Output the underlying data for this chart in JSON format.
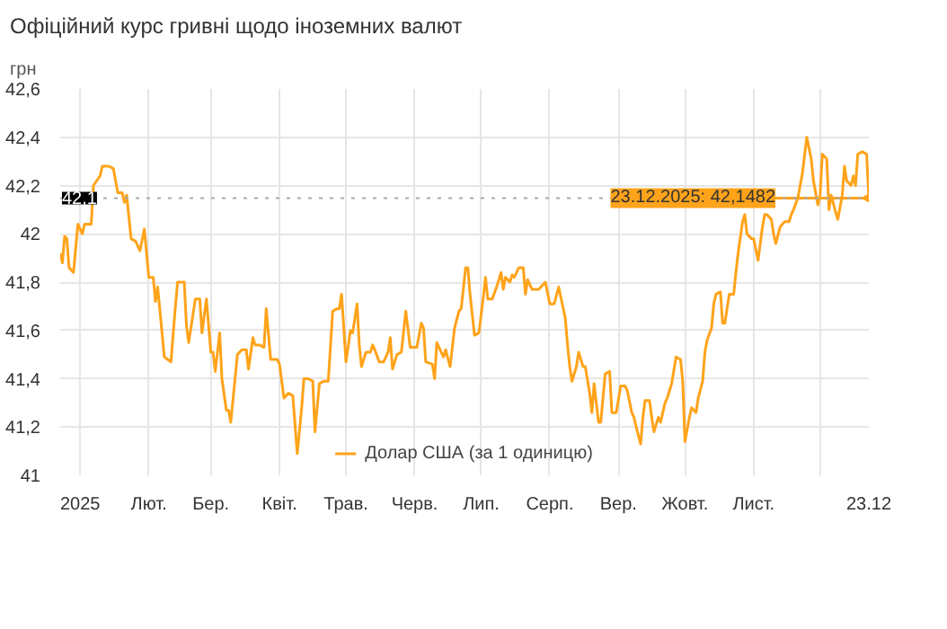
{
  "chart_data": {
    "type": "line",
    "title": "Офіційний курс гривні щодо іноземних валют",
    "ylabel": "грн",
    "xlim": [
      "2024-12-23",
      "2025-12-23"
    ],
    "xticks": [
      {
        "value": "2025-01-01",
        "label": "2025"
      },
      {
        "value": "2025-02-01",
        "label": "Лют."
      },
      {
        "value": "2025-03-01",
        "label": "Бер."
      },
      {
        "value": "2025-04-01",
        "label": "Квіт."
      },
      {
        "value": "2025-05-01",
        "label": "Трав."
      },
      {
        "value": "2025-06-01",
        "label": "Черв."
      },
      {
        "value": "2025-07-01",
        "label": "Лип."
      },
      {
        "value": "2025-08-01",
        "label": "Серп."
      },
      {
        "value": "2025-09-01",
        "label": "Вер."
      },
      {
        "value": "2025-10-01",
        "label": "Жовт."
      },
      {
        "value": "2025-11-01",
        "label": "Лист."
      },
      {
        "value": "2025-12-01",
        "label": null
      },
      {
        "value": "2025-12-23",
        "label": "23.12"
      }
    ],
    "ylim": [
      41,
      42.6
    ],
    "yticks": [
      {
        "value": 41,
        "label": "41"
      },
      {
        "value": 41.2,
        "label": "41,2"
      },
      {
        "value": 41.4,
        "label": "41,4"
      },
      {
        "value": 41.6,
        "label": "41,6"
      },
      {
        "value": 41.8,
        "label": "41,8"
      },
      {
        "value": 42,
        "label": "42"
      },
      {
        "value": 42.2,
        "label": "42,2"
      },
      {
        "value": 42.4,
        "label": "42,4"
      },
      {
        "value": 42.6,
        "label": "42,6"
      }
    ],
    "grid": true,
    "legend": "bottom",
    "marker": "none",
    "line_style": "solid",
    "ref_lines": [
      {
        "axis": "y",
        "value": 42.1482,
        "label": "42,1",
        "color": "#aaaaaa",
        "line_style": "dotted"
      }
    ],
    "annotations": [
      {
        "text": "23.12.2025: 42,1482",
        "x": "2025-12-23",
        "y": 42.1482
      }
    ],
    "series": [
      {
        "name": "Долар США (за 1 одиницю)",
        "color": "#ffa31a",
        "x": [
          "2024-12-23",
          "2024-12-24",
          "2024-12-25",
          "2024-12-26",
          "2024-12-27",
          "2024-12-29",
          "2024-12-31",
          "2025-01-02",
          "2025-01-03",
          "2025-01-06",
          "2025-01-07",
          "2025-01-10",
          "2025-01-11",
          "2025-01-14",
          "2025-01-16",
          "2025-01-18",
          "2025-01-20",
          "2025-01-21",
          "2025-01-22",
          "2025-01-24",
          "2025-01-26",
          "2025-01-28",
          "2025-01-30",
          "2025-02-01",
          "2025-02-03",
          "2025-02-04",
          "2025-02-05",
          "2025-02-08",
          "2025-02-11",
          "2025-02-13",
          "2025-02-14",
          "2025-02-17",
          "2025-02-18",
          "2025-02-19",
          "2025-02-22",
          "2025-02-24",
          "2025-02-25",
          "2025-02-27",
          "2025-03-01",
          "2025-03-02",
          "2025-03-03",
          "2025-03-05",
          "2025-03-06",
          "2025-03-08",
          "2025-03-09",
          "2025-03-10",
          "2025-03-13",
          "2025-03-15",
          "2025-03-17",
          "2025-03-18",
          "2025-03-20",
          "2025-03-21",
          "2025-03-23",
          "2025-03-25",
          "2025-03-26",
          "2025-03-28",
          "2025-03-31",
          "2025-04-01",
          "2025-04-03",
          "2025-04-05",
          "2025-04-07",
          "2025-04-09",
          "2025-04-11",
          "2025-04-12",
          "2025-04-14",
          "2025-04-16",
          "2025-04-17",
          "2025-04-19",
          "2025-04-21",
          "2025-04-23",
          "2025-04-25",
          "2025-04-27",
          "2025-04-28",
          "2025-04-29",
          "2025-05-01",
          "2025-05-03",
          "2025-05-04",
          "2025-05-06",
          "2025-05-07",
          "2025-05-08",
          "2025-05-10",
          "2025-05-12",
          "2025-05-13",
          "2025-05-14",
          "2025-05-16",
          "2025-05-18",
          "2025-05-20",
          "2025-05-21",
          "2025-05-22",
          "2025-05-24",
          "2025-05-26",
          "2025-05-28",
          "2025-05-30",
          "2025-06-02",
          "2025-06-04",
          "2025-06-05",
          "2025-06-06",
          "2025-06-09",
          "2025-06-10",
          "2025-06-11",
          "2025-06-14",
          "2025-06-15",
          "2025-06-17",
          "2025-06-18",
          "2025-06-19",
          "2025-06-21",
          "2025-06-22",
          "2025-06-24",
          "2025-06-25",
          "2025-06-26",
          "2025-06-28",
          "2025-06-30",
          "2025-07-02",
          "2025-07-03",
          "2025-07-04",
          "2025-07-06",
          "2025-07-08",
          "2025-07-10",
          "2025-07-11",
          "2025-07-12",
          "2025-07-14",
          "2025-07-15",
          "2025-07-16",
          "2025-07-18",
          "2025-07-20",
          "2025-07-21",
          "2025-07-22",
          "2025-07-24",
          "2025-07-27",
          "2025-07-30",
          "2025-08-01",
          "2025-08-03",
          "2025-08-05",
          "2025-08-08",
          "2025-08-09",
          "2025-08-10",
          "2025-08-11",
          "2025-08-13",
          "2025-08-14",
          "2025-08-16",
          "2025-08-17",
          "2025-08-19",
          "2025-08-20",
          "2025-08-21",
          "2025-08-23",
          "2025-08-24",
          "2025-08-26",
          "2025-08-28",
          "2025-08-29",
          "2025-08-31",
          "2025-09-02",
          "2025-09-04",
          "2025-09-05",
          "2025-09-07",
          "2025-09-08",
          "2025-09-09",
          "2025-09-11",
          "2025-09-12",
          "2025-09-13",
          "2025-09-15",
          "2025-09-16",
          "2025-09-17",
          "2025-09-19",
          "2025-09-20",
          "2025-09-22",
          "2025-09-23",
          "2025-09-25",
          "2025-09-27",
          "2025-09-29",
          "2025-09-30",
          "2025-10-01",
          "2025-10-03",
          "2025-10-04",
          "2025-10-06",
          "2025-10-07",
          "2025-10-09",
          "2025-10-10",
          "2025-10-11",
          "2025-10-13",
          "2025-10-14",
          "2025-10-15",
          "2025-10-17",
          "2025-10-18",
          "2025-10-19",
          "2025-10-21",
          "2025-10-23",
          "2025-10-24",
          "2025-10-25",
          "2025-10-27",
          "2025-10-28",
          "2025-10-29",
          "2025-10-31",
          "2025-11-01",
          "2025-11-03",
          "2025-11-05",
          "2025-11-06",
          "2025-11-07",
          "2025-11-09",
          "2025-11-10",
          "2025-11-11",
          "2025-11-13",
          "2025-11-14",
          "2025-11-15",
          "2025-11-17",
          "2025-11-18",
          "2025-11-19",
          "2025-11-21",
          "2025-11-23",
          "2025-11-25",
          "2025-11-27",
          "2025-11-28",
          "2025-11-30",
          "2025-12-01",
          "2025-12-02",
          "2025-12-04",
          "2025-12-05",
          "2025-12-06",
          "2025-12-08",
          "2025-12-09",
          "2025-12-11",
          "2025-12-12",
          "2025-12-13",
          "2025-12-15",
          "2025-12-16",
          "2025-12-17",
          "2025-12-18",
          "2025-12-20",
          "2025-12-22",
          "2025-12-23"
        ],
        "values": [
          41.92,
          41.88,
          41.99,
          41.98,
          41.86,
          41.84,
          42.04,
          42.0,
          42.04,
          42.04,
          42.2,
          42.24,
          42.28,
          42.28,
          42.27,
          42.17,
          42.17,
          42.13,
          42.16,
          41.98,
          41.97,
          41.93,
          42.02,
          41.82,
          41.82,
          41.72,
          41.78,
          41.49,
          41.47,
          41.7,
          41.8,
          41.8,
          41.62,
          41.55,
          41.73,
          41.73,
          41.59,
          41.73,
          41.51,
          41.51,
          41.43,
          41.59,
          41.4,
          41.27,
          41.27,
          41.22,
          41.5,
          41.52,
          41.52,
          41.44,
          41.57,
          41.54,
          41.54,
          41.53,
          41.69,
          41.48,
          41.48,
          41.46,
          41.32,
          41.34,
          41.33,
          41.09,
          41.28,
          41.4,
          41.4,
          41.39,
          41.18,
          41.38,
          41.39,
          41.39,
          41.68,
          41.69,
          41.69,
          41.75,
          41.47,
          41.6,
          41.59,
          41.71,
          41.54,
          41.45,
          41.51,
          41.51,
          41.54,
          41.52,
          41.47,
          41.47,
          41.51,
          41.57,
          41.44,
          41.5,
          41.51,
          41.68,
          41.53,
          41.53,
          41.63,
          41.61,
          41.47,
          41.46,
          41.4,
          41.55,
          41.49,
          41.52,
          41.45,
          41.53,
          41.61,
          41.68,
          41.69,
          41.86,
          41.86,
          41.75,
          41.58,
          41.59,
          41.74,
          41.82,
          41.73,
          41.73,
          41.78,
          41.84,
          41.77,
          41.82,
          41.8,
          41.83,
          41.82,
          41.86,
          41.86,
          41.75,
          41.81,
          41.77,
          41.77,
          41.8,
          41.71,
          41.71,
          41.78,
          41.65,
          41.54,
          41.45,
          41.39,
          41.45,
          41.51,
          41.45,
          41.45,
          41.34,
          41.26,
          41.38,
          41.22,
          41.22,
          41.42,
          41.43,
          41.26,
          41.26,
          41.37,
          41.37,
          41.35,
          41.26,
          41.24,
          41.2,
          41.13,
          41.24,
          41.31,
          41.31,
          41.24,
          41.18,
          41.24,
          41.22,
          41.3,
          41.32,
          41.38,
          41.49,
          41.48,
          41.39,
          41.14,
          41.24,
          41.28,
          41.26,
          41.32,
          41.39,
          41.51,
          41.56,
          41.61,
          41.71,
          41.75,
          41.76,
          41.63,
          41.63,
          41.75,
          41.75,
          41.84,
          41.92,
          42.05,
          42.08,
          42.0,
          41.98,
          41.98,
          41.89,
          42.03,
          42.08,
          42.08,
          42.06,
          42.0,
          41.96,
          42.03,
          42.04,
          42.05,
          42.05,
          42.08,
          42.1,
          42.15,
          42.25,
          42.4,
          42.31,
          42.22,
          42.12,
          42.16,
          42.33,
          42.31,
          42.1,
          42.16,
          42.09,
          42.06,
          42.16,
          42.28,
          42.22,
          42.2,
          42.24,
          42.2,
          42.33,
          42.34,
          42.33,
          42.1482
        ]
      }
    ]
  }
}
